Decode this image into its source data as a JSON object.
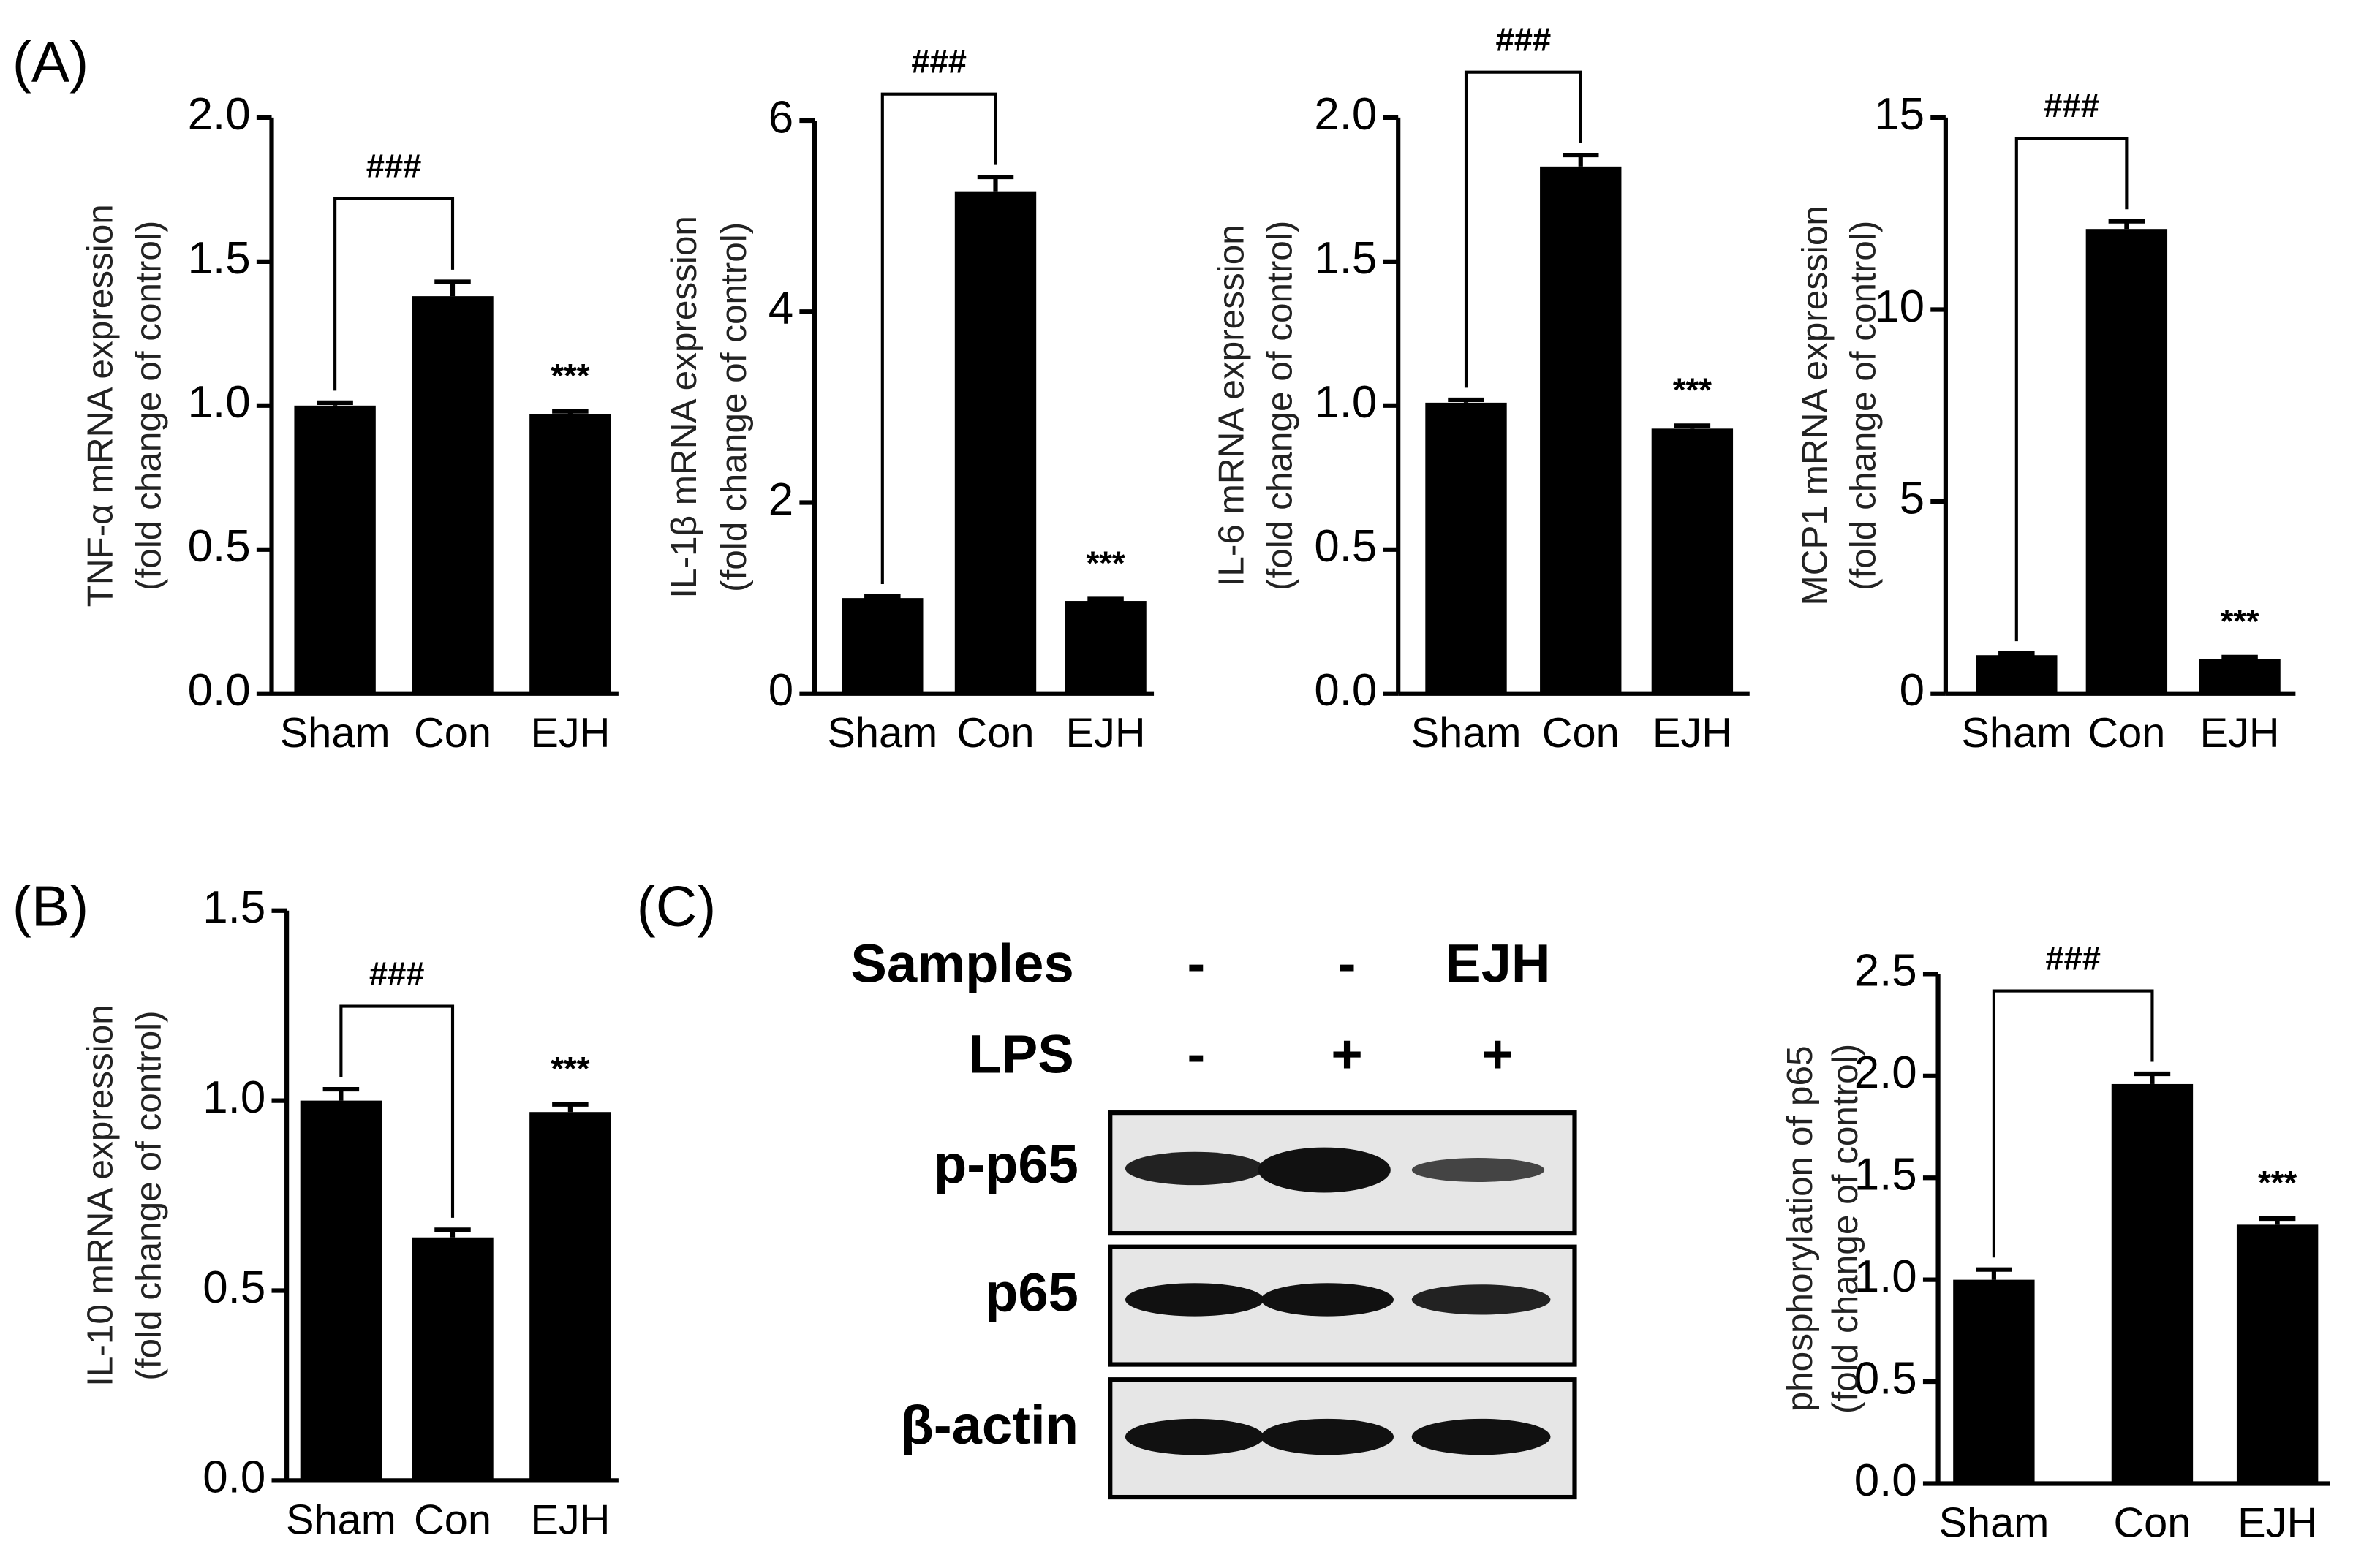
{
  "panels": [
    "(A)",
    "(B)",
    "(C)"
  ],
  "blot": {
    "samples_label": "Samples",
    "samples": [
      "-",
      "-",
      "EJH"
    ],
    "lps_label": "LPS",
    "lps": [
      "-",
      "+",
      "+"
    ],
    "rows": [
      "p-p65",
      "p65",
      "β-actin"
    ]
  },
  "chart_data": [
    {
      "type": "bar",
      "ylabel": [
        "TNF-α mRNA expression",
        "(fold change of control)"
      ],
      "categories": [
        "Sham",
        "Con",
        "EJH"
      ],
      "values": [
        1.0,
        1.38,
        0.97
      ],
      "errors": [
        0.01,
        0.05,
        0.01
      ],
      "color": "#000000",
      "ylim": [
        0,
        2
      ],
      "yticks": [
        {
          "value": 0,
          "label": "0.0"
        },
        {
          "value": 0.5,
          "label": "0.5"
        },
        {
          "value": 1,
          "label": "1.0"
        },
        {
          "value": 1.5,
          "label": "1.5"
        },
        {
          "value": 2,
          "label": "2.0"
        }
      ],
      "bracket_label": "###",
      "star_label": "***"
    },
    {
      "type": "bar",
      "ylabel": [
        "IL-1β mRNA expression",
        "(fold change of control)"
      ],
      "categories": [
        "Sham",
        "Con",
        "EJH"
      ],
      "values": [
        1.0,
        5.26,
        0.97
      ],
      "errors": [
        0.02,
        0.15,
        0.02
      ],
      "color": "#000000",
      "ylim": [
        0,
        6
      ],
      "yticks": [
        0,
        2,
        4,
        6
      ],
      "bracket_label": "###",
      "star_label": "***"
    },
    {
      "type": "bar",
      "ylabel": [
        "IL-6 mRNA expression",
        "(fold change of control)"
      ],
      "categories": [
        "Sham",
        "Con",
        "EJH"
      ],
      "values": [
        1.01,
        1.83,
        0.92
      ],
      "errors": [
        0.01,
        0.04,
        0.01
      ],
      "color": "#000000",
      "ylim": [
        0,
        2
      ],
      "yticks": [
        {
          "value": 0,
          "label": "0.0"
        },
        {
          "value": 0.5,
          "label": "0.5"
        },
        {
          "value": 1,
          "label": "1.0"
        },
        {
          "value": 1.5,
          "label": "1.5"
        },
        {
          "value": 2,
          "label": "2.0"
        }
      ],
      "bracket_label": "###",
      "star_label": "***"
    },
    {
      "type": "bar",
      "ylabel": [
        "MCP1 mRNA expression",
        "(fold change of control)"
      ],
      "categories": [
        "Sham",
        "Con",
        "EJH"
      ],
      "values": [
        1.0,
        12.1,
        0.9
      ],
      "errors": [
        0.05,
        0.2,
        0.05
      ],
      "color": "#000000",
      "ylim": [
        0,
        15
      ],
      "yticks": [
        0,
        5,
        10,
        15
      ],
      "bracket_label": "###",
      "star_label": "***"
    },
    {
      "type": "bar",
      "ylabel": [
        "IL-10 mRNA expression",
        "(fold change of control)"
      ],
      "categories": [
        "Sham",
        "Con",
        "EJH"
      ],
      "values": [
        1.0,
        0.64,
        0.97
      ],
      "errors": [
        0.03,
        0.02,
        0.02
      ],
      "color": "#000000",
      "ylim": [
        0,
        1.5
      ],
      "yticks": [
        {
          "value": 0,
          "label": "0.0"
        },
        {
          "value": 0.5,
          "label": "0.5"
        },
        {
          "value": 1,
          "label": "1.0"
        },
        {
          "value": 1.5,
          "label": "1.5"
        }
      ],
      "bracket_label": "###",
      "star_label": "***"
    },
    {
      "type": "bar",
      "ylabel": [
        "phosphorylation of p65",
        "(fold change of control)"
      ],
      "categories": [
        "Sham",
        "Con",
        "EJH"
      ],
      "values": [
        1.0,
        1.96,
        1.27
      ],
      "errors": [
        0.05,
        0.05,
        0.03
      ],
      "color": "#000000",
      "ylim": [
        0,
        2.5
      ],
      "yticks": [
        {
          "value": 0,
          "label": "0.0"
        },
        {
          "value": 0.5,
          "label": "0.5"
        },
        {
          "value": 1,
          "label": "1.0"
        },
        {
          "value": 1.5,
          "label": "1.5"
        },
        {
          "value": 2,
          "label": "2.0"
        },
        {
          "value": 2.5,
          "label": "2.5"
        }
      ],
      "bracket_label": "###",
      "star_label": "***"
    }
  ]
}
